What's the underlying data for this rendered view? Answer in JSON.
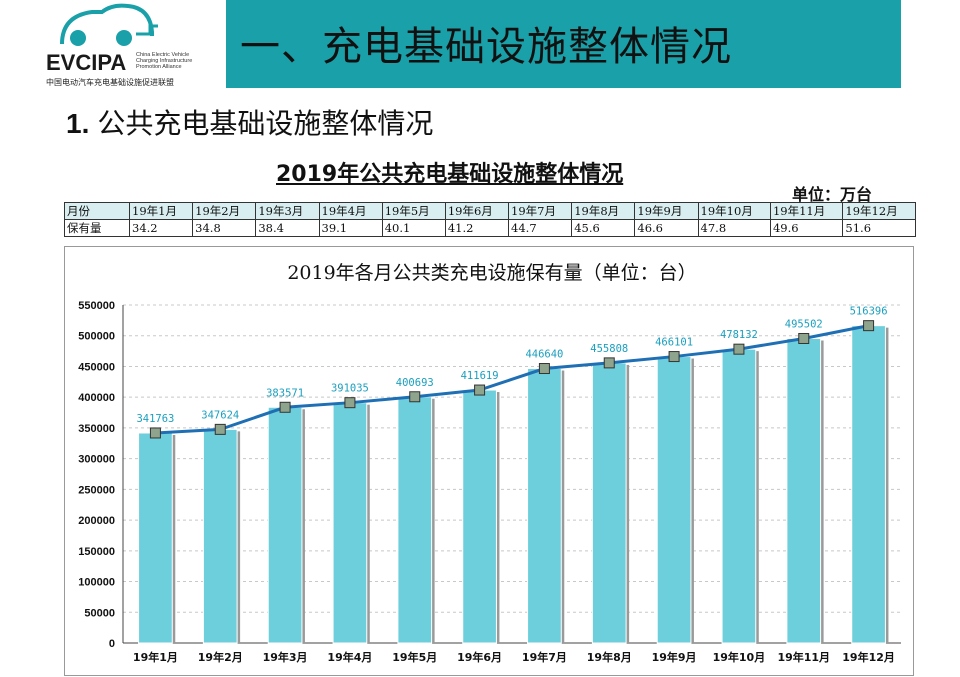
{
  "logo": {
    "brand": "EVCIPA",
    "english_lines": [
      "China Electric Vehicle",
      "Charging Infrastructure",
      "Promotion Alliance"
    ],
    "chinese_name": "中国电动汽车充电基础设施促进联盟"
  },
  "header": {
    "title": "一、充电基础设施整体情况"
  },
  "section": {
    "number": "1.",
    "title": "公共充电基础设施整体情况"
  },
  "table": {
    "title": "2019年公共充电基础设施整体情况",
    "unit": "单位：万台",
    "row_month_label": "月份",
    "row_value_label": "保有量",
    "months": [
      "19年1月",
      "19年2月",
      "19年3月",
      "19年4月",
      "19年5月",
      "19年6月",
      "19年7月",
      "19年8月",
      "19年9月",
      "19年10月",
      "19年11月",
      "19年12月"
    ],
    "values": [
      "34.2",
      "34.8",
      "38.4",
      "39.1",
      "40.1",
      "41.2",
      "44.7",
      "45.6",
      "46.6",
      "47.8",
      "49.6",
      "51.6"
    ]
  },
  "colors": {
    "header_band": "#1aa0a8",
    "bar_fill": "#6ecfdc",
    "line": "#1f6fb5",
    "marker": "#8fa48c",
    "data_label": "#1a9fbf"
  },
  "chart_data": {
    "type": "bar",
    "title": "2019年各月公共类充电设施保有量（单位：台）",
    "categories": [
      "19年1月",
      "19年2月",
      "19年3月",
      "19年4月",
      "19年5月",
      "19年6月",
      "19年7月",
      "19年8月",
      "19年9月",
      "19年10月",
      "19年11月",
      "19年12月"
    ],
    "series": [
      {
        "values": [
          341763,
          347624,
          383571,
          391035,
          400693,
          411619,
          446640,
          455808,
          466101,
          478132,
          495502,
          516396
        ]
      }
    ],
    "overlay_line": true,
    "ylim": [
      0,
      550000
    ],
    "yticks": [
      0,
      50000,
      100000,
      150000,
      200000,
      250000,
      300000,
      350000,
      400000,
      450000,
      500000,
      550000
    ],
    "grid": true,
    "legend": "none"
  }
}
